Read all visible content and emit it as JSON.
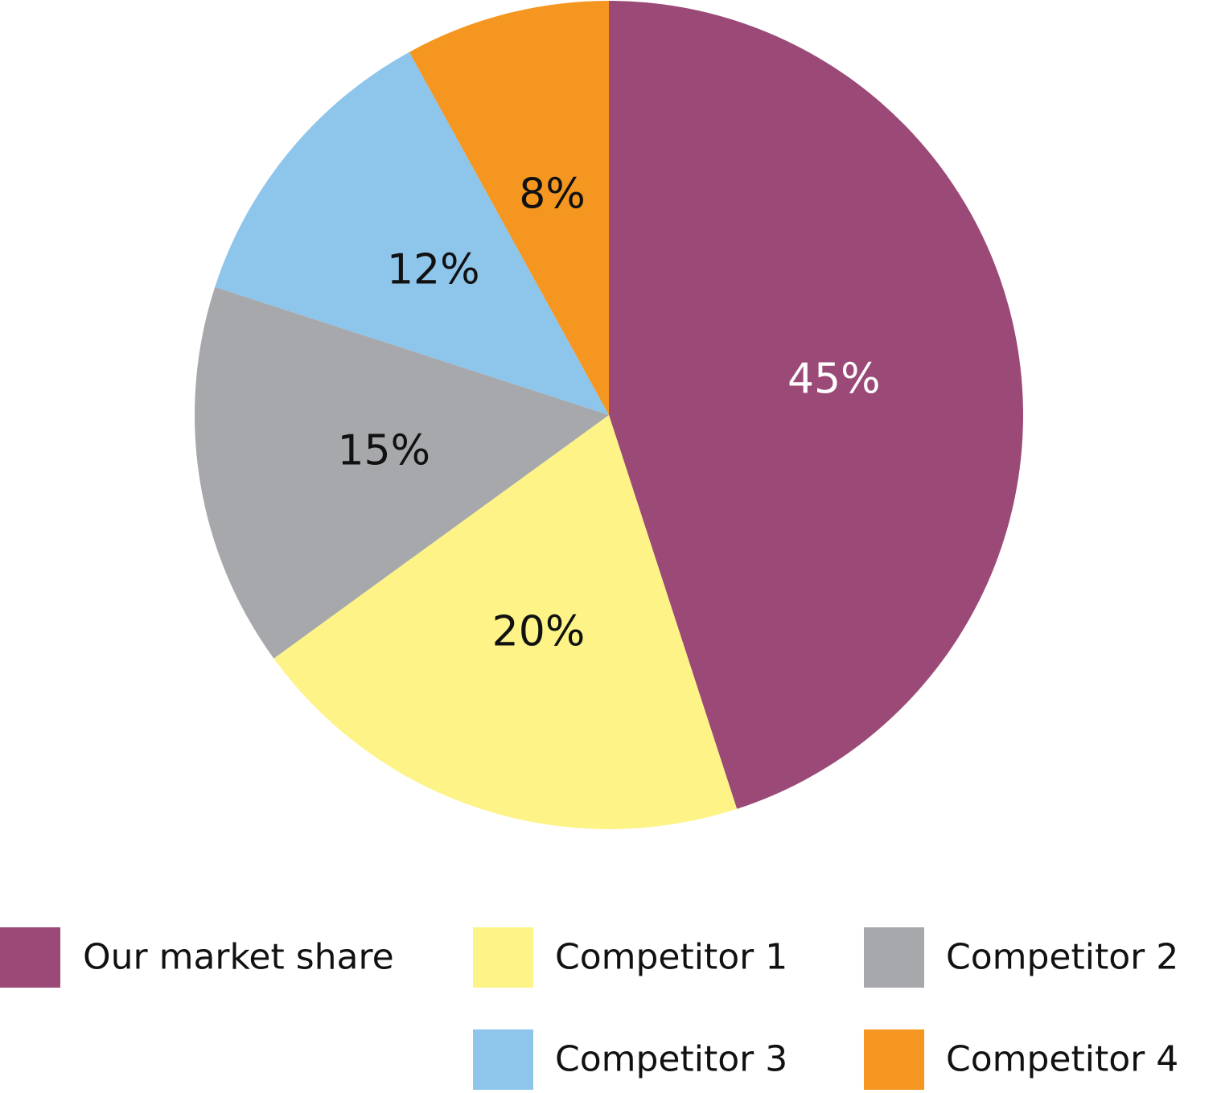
{
  "chart_data": {
    "type": "pie",
    "categories": [
      "Our market share",
      "Competitor 1",
      "Competitor 2",
      "Competitor 3",
      "Competitor 4"
    ],
    "values": [
      45,
      20,
      15,
      12,
      8
    ],
    "value_labels": [
      "45%",
      "20%",
      "15%",
      "12%",
      "8%"
    ],
    "colors": [
      "#9b4976",
      "#fdf387",
      "#a7a8ab",
      "#8ec5eb",
      "#f49620"
    ]
  }
}
